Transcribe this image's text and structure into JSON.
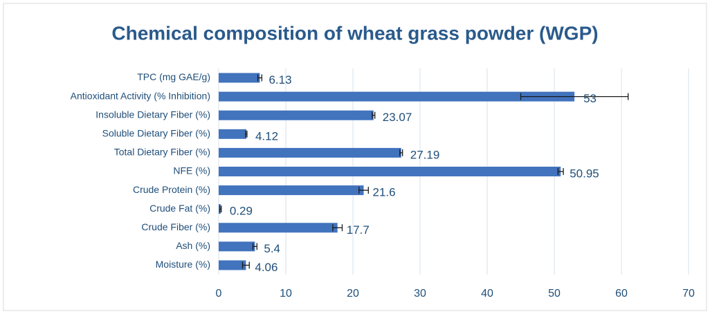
{
  "chart_data": {
    "type": "bar",
    "orientation": "horizontal",
    "title": "Chemical composition of wheat grass powder (WGP)",
    "categories": [
      "TPC (mg GAE/g)",
      "Antioxidant Activity (% Inhibition)",
      "Insoluble Dietary Fiber (%)",
      "Soluble Dietary Fiber (%)",
      "Total Dietary Fiber (%)",
      "NFE (%)",
      "Crude Protein (%)",
      "Crude Fat (%)",
      "Crude Fiber (%)",
      "Ash (%)",
      "Moisture (%)"
    ],
    "values": [
      6.13,
      53,
      23.07,
      4.12,
      27.19,
      50.95,
      21.6,
      0.29,
      17.7,
      5.4,
      4.06
    ],
    "errors": [
      0.3,
      8,
      0.2,
      0.1,
      0.2,
      0.4,
      0.7,
      0.1,
      0.7,
      0.3,
      0.5
    ],
    "color": "#4273bd",
    "xlim": [
      0,
      70
    ],
    "xticks": [
      0,
      10,
      20,
      30,
      40,
      50,
      60,
      70
    ],
    "grid": true
  }
}
